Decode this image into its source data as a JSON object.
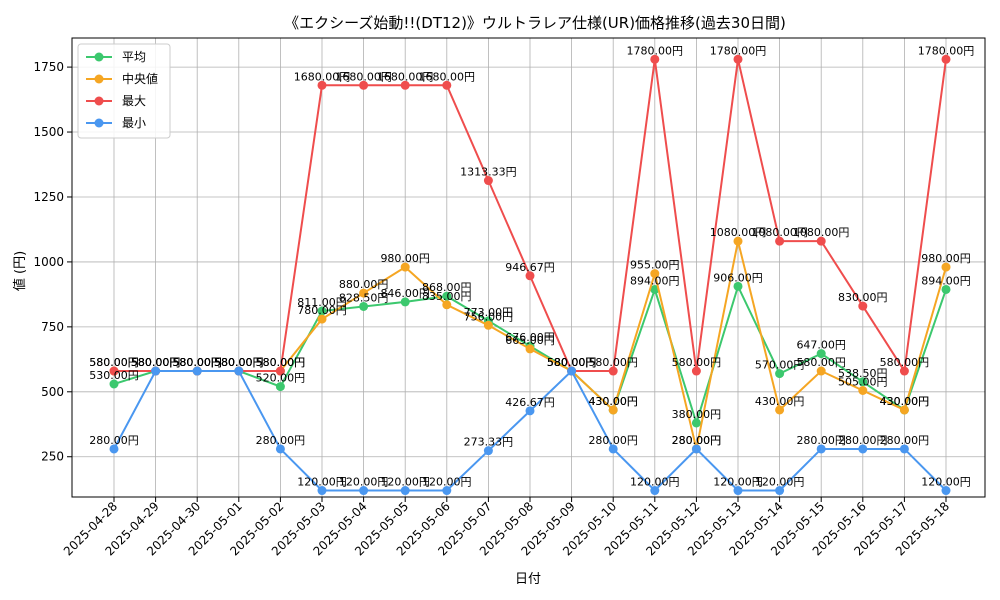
{
  "chart_data": {
    "type": "line",
    "title": "《エクシーズ始動!!(DT12)》ウルトラレア仕様(UR)価格推移(過去30日間)",
    "xlabel": "日付",
    "ylabel": "値 (円)",
    "categories": [
      "2025-04-28",
      "2025-04-29",
      "2025-04-30",
      "2025-05-01",
      "2025-05-02",
      "2025-05-03",
      "2025-05-04",
      "2025-05-05",
      "2025-05-06",
      "2025-05-07",
      "2025-05-08",
      "2025-05-09",
      "2025-05-10",
      "2025-05-11",
      "2025-05-12",
      "2025-05-13",
      "2025-05-14",
      "2025-05-15",
      "2025-05-16",
      "2025-05-17",
      "2025-05-18"
    ],
    "ylim": [
      95,
      1862
    ],
    "yticks": [
      250,
      500,
      750,
      1000,
      1250,
      1500,
      1750
    ],
    "grid": true,
    "legend_position": "top-left",
    "series": [
      {
        "name": "平均",
        "color": "#3cc86e",
        "values": [
          530,
          580,
          580,
          580,
          520,
          811,
          828.5,
          846,
          868,
          773,
          676,
          580,
          430,
          894,
          380,
          906,
          570,
          647,
          538.5,
          430,
          894
        ],
        "labels": [
          "530.00円",
          "580.00円",
          "580.00円",
          "580.00円",
          "520.00円",
          "811.00円",
          "828.50円",
          "846.00円",
          "868.00円",
          "773.00円",
          "676.00円",
          "580.00円",
          "430.00円",
          "894.00円",
          "380.00円",
          "906.00円",
          "570.00円",
          "647.00円",
          "538.50円",
          "430.00円",
          "894.00円"
        ]
      },
      {
        "name": "中央値",
        "color": "#f5a623",
        "values": [
          580,
          580,
          580,
          580,
          580,
          780,
          880,
          980,
          835,
          756,
          665,
          580,
          430,
          955,
          280,
          1080,
          430,
          580,
          505,
          430,
          980
        ],
        "labels": [
          "580.00円",
          "580.00円",
          "580.00円",
          "580.00円",
          "580.00円",
          "780.00円",
          "880.00円",
          "980.00円",
          "835.00円",
          "756.00円",
          "665.00円",
          "580.00円",
          "430.00円",
          "955.00円",
          "280.00円",
          "1080.00円",
          "430.00円",
          "580.00円",
          "505.00円",
          "430.00円",
          "980.00円"
        ]
      },
      {
        "name": "最大",
        "color": "#ef4d4d",
        "values": [
          580,
          580,
          580,
          580,
          580,
          1680,
          1680,
          1680,
          1680,
          1313.33,
          946.67,
          580,
          580,
          1780,
          580,
          1780,
          1080,
          1080,
          830,
          580,
          1780
        ],
        "labels": [
          "580.00円",
          "580.00円",
          "580.00円",
          "580.00円",
          "580.00円",
          "1680.00円",
          "1680.00円",
          "1680.00円",
          "1680.00円",
          "1313.33円",
          "946.67円",
          "580.00円",
          "580.00円",
          "1780.00円",
          "580.00円",
          "1780.00円",
          "1080.00円",
          "1080.00円",
          "830.00円",
          "580.00円",
          "1780.00円"
        ]
      },
      {
        "name": "最小",
        "color": "#4a97f0",
        "values": [
          280,
          580,
          580,
          580,
          280,
          120,
          120,
          120,
          120,
          273.33,
          426.67,
          580,
          280,
          120,
          280,
          120,
          120,
          280,
          280,
          280,
          120
        ],
        "labels": [
          "280.00円",
          "580.00円",
          "580.00円",
          "580.00円",
          "280.00円",
          "120.00円",
          "120.00円",
          "120.00円",
          "120.00円",
          "273.33円",
          "426.67円",
          "580.00円",
          "280.00円",
          "120.00円",
          "280.00円",
          "120.00円",
          "120.00円",
          "280.00円",
          "280.00円",
          "280.00円",
          "120.00円"
        ]
      }
    ]
  }
}
